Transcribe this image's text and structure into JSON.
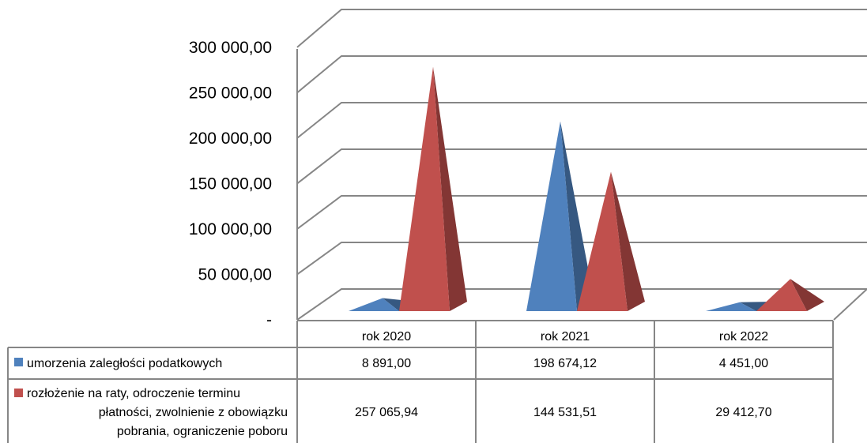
{
  "chart_data": {
    "type": "bar",
    "style": "3d-pyramid",
    "categories": [
      "rok 2020",
      "rok 2021",
      "rok 2022"
    ],
    "series": [
      {
        "name": "umorzenia zaległości podatkowych",
        "values": [
          8891.0,
          198674.12,
          4451.0
        ],
        "value_labels": [
          "8 891,00",
          "198 674,12",
          "4 451,00"
        ],
        "color": "#4F81BD"
      },
      {
        "name": "rozłożenie na raty, odroczenie terminu płatności, zwolnienie z obowiązku pobrania, ograniczenie poboru",
        "name_lines": [
          "rozłożenie na raty, odroczenie terminu",
          "płatności, zwolnienie z obowiązku",
          "pobrania, ograniczenie poboru"
        ],
        "values": [
          257065.94,
          144531.51,
          29412.7
        ],
        "value_labels": [
          "257 065,94",
          "144 531,51",
          "29 412,70"
        ],
        "color": "#C0504D"
      }
    ],
    "ylim": [
      0,
      300000
    ],
    "yticks": [
      0,
      50000,
      100000,
      150000,
      200000,
      250000,
      300000
    ],
    "ytick_labels": [
      "-",
      "50 000,00",
      "100 000,00",
      "150 000,00",
      "200 000,00",
      "250 000,00",
      "300 000,00"
    ],
    "grid": true,
    "legend": "data-table",
    "title": "",
    "xlabel": "",
    "ylabel": ""
  }
}
